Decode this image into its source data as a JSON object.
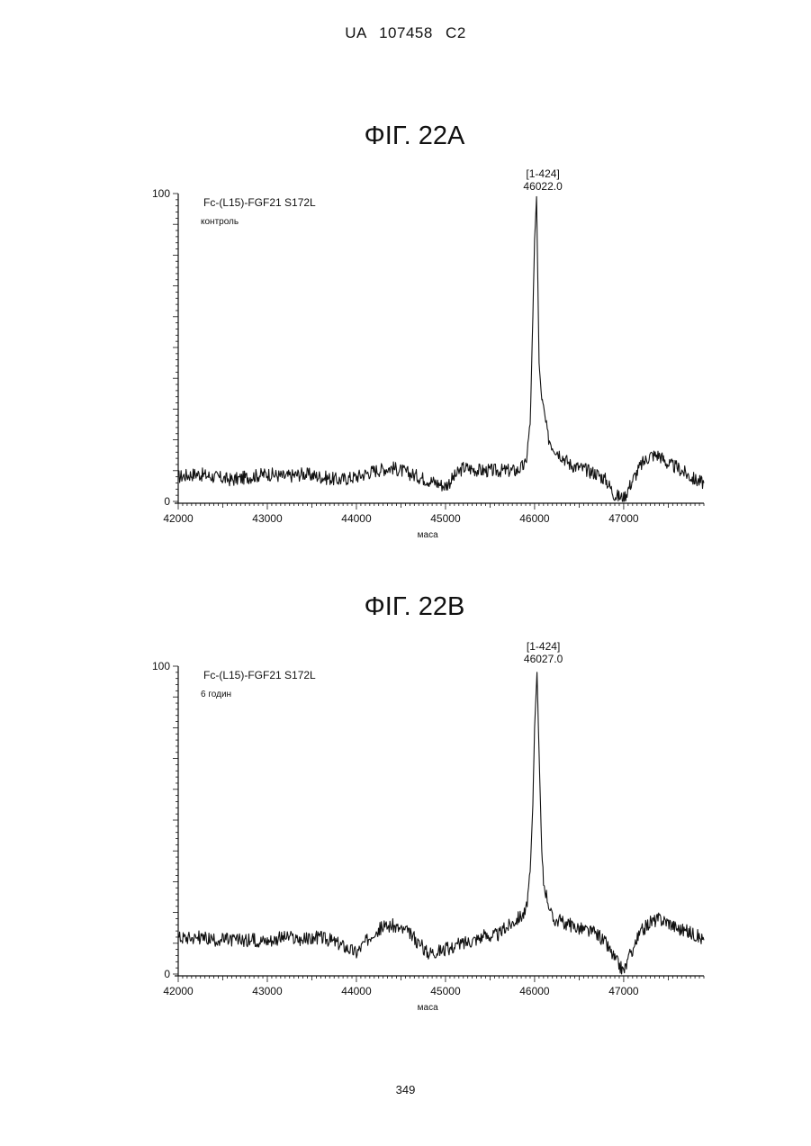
{
  "header": {
    "text": "UA   107458   C2"
  },
  "page_number": "349",
  "figures": [
    {
      "title": "ΦΙΓ. 22A",
      "sample": "Fc-(L15)-FGF21 S172L",
      "condition": "контроль",
      "peak_range": "[1-424]",
      "peak_mass": "46022.0",
      "xlabel": "маса"
    },
    {
      "title": "ΦΙΓ. 22B",
      "sample": "Fc-(L15)-FGF21 S172L",
      "condition": "6 годин",
      "peak_range": "[1-424]",
      "peak_mass": "46027.0",
      "xlabel": "маса"
    }
  ],
  "chart_data": [
    {
      "type": "line",
      "xlabel": "маса",
      "ylabel": "",
      "xlim": [
        42000,
        47900
      ],
      "ylim": [
        0,
        100
      ],
      "xticks": [
        42000,
        43000,
        44000,
        45000,
        46000,
        47000
      ],
      "yticks": [
        0,
        100
      ],
      "grid": false,
      "series": [
        {
          "x": [
            42000,
            42200,
            42400,
            42600,
            42800,
            43000,
            43200,
            43400,
            43600,
            43800,
            44000,
            44200,
            44400,
            44600,
            44800,
            45000,
            45200,
            45400,
            45600,
            45800,
            45900,
            45950,
            45980,
            46000,
            46022,
            46050,
            46080,
            46100,
            46150,
            46200,
            46300,
            46400,
            46500,
            46600,
            46700,
            46800,
            46900,
            47000,
            47100,
            47200,
            47300,
            47400,
            47500,
            47600,
            47700,
            47800,
            47900
          ],
          "y": [
            8,
            9,
            8,
            7,
            8,
            9,
            8,
            9,
            8,
            7,
            8,
            10,
            11,
            9,
            7,
            5,
            11,
            10,
            10,
            10,
            12,
            25,
            60,
            85,
            99,
            45,
            33,
            30,
            21,
            18,
            15,
            12,
            11,
            10,
            9,
            7,
            2,
            1,
            7,
            12,
            15,
            15,
            12,
            11,
            9,
            7,
            6
          ]
        }
      ]
    },
    {
      "type": "line",
      "xlabel": "маса",
      "ylabel": "",
      "xlim": [
        42000,
        47900
      ],
      "ylim": [
        0,
        100
      ],
      "xticks": [
        42000,
        43000,
        44000,
        45000,
        46000,
        47000
      ],
      "yticks": [
        0,
        100
      ],
      "grid": false,
      "series": [
        {
          "x": [
            42000,
            42200,
            42400,
            42600,
            42800,
            43000,
            43200,
            43400,
            43600,
            43800,
            44000,
            44200,
            44400,
            44600,
            44800,
            45000,
            45200,
            45400,
            45600,
            45800,
            45900,
            45950,
            45980,
            46000,
            46027,
            46050,
            46080,
            46100,
            46150,
            46200,
            46300,
            46400,
            46500,
            46600,
            46700,
            46800,
            46900,
            47000,
            47100,
            47200,
            47300,
            47400,
            47500,
            47600,
            47700,
            47800,
            47900
          ],
          "y": [
            12,
            12,
            11,
            11,
            11,
            11,
            12,
            11,
            12,
            10,
            7,
            14,
            16,
            13,
            7,
            8,
            10,
            12,
            13,
            18,
            20,
            32,
            55,
            80,
            98,
            72,
            40,
            30,
            24,
            18,
            17,
            16,
            15,
            14,
            13,
            10,
            5,
            1,
            8,
            14,
            17,
            18,
            17,
            15,
            14,
            13,
            11
          ]
        }
      ]
    }
  ]
}
